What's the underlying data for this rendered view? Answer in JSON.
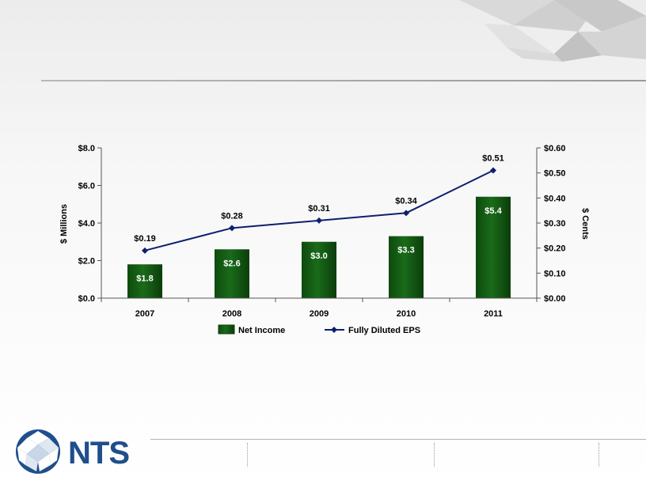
{
  "logo": {
    "text": "NTS"
  },
  "chart_data": {
    "type": "bar+line",
    "categories": [
      "2007",
      "2008",
      "2009",
      "2010",
      "2011"
    ],
    "series": [
      {
        "name": "Net Income",
        "type": "bar",
        "axis": "left",
        "values": [
          1.8,
          2.6,
          3.0,
          3.3,
          5.4
        ],
        "labels": [
          "$1.8",
          "$2.6",
          "$3.0",
          "$3.3",
          "$5.4"
        ],
        "color": "#1a6b1a"
      },
      {
        "name": "Fully Diluted EPS",
        "type": "line",
        "axis": "right",
        "values": [
          0.19,
          0.28,
          0.31,
          0.34,
          0.51
        ],
        "labels": [
          "$0.19",
          "$0.28",
          "$0.31",
          "$0.34",
          "$0.51"
        ],
        "color": "#0f1f6e"
      }
    ],
    "y_left": {
      "label": "$ Millions",
      "ylim": [
        0,
        8
      ],
      "ticks": [
        "$0.0",
        "$2.0",
        "$4.0",
        "$6.0",
        "$8.0"
      ]
    },
    "y_right": {
      "label": "$ Cents",
      "ylim": [
        0,
        0.6
      ],
      "ticks": [
        "$0.00",
        "$0.10",
        "$0.20",
        "$0.30",
        "$0.40",
        "$0.50",
        "$0.60"
      ]
    },
    "grid": false,
    "legend": "bottom"
  }
}
